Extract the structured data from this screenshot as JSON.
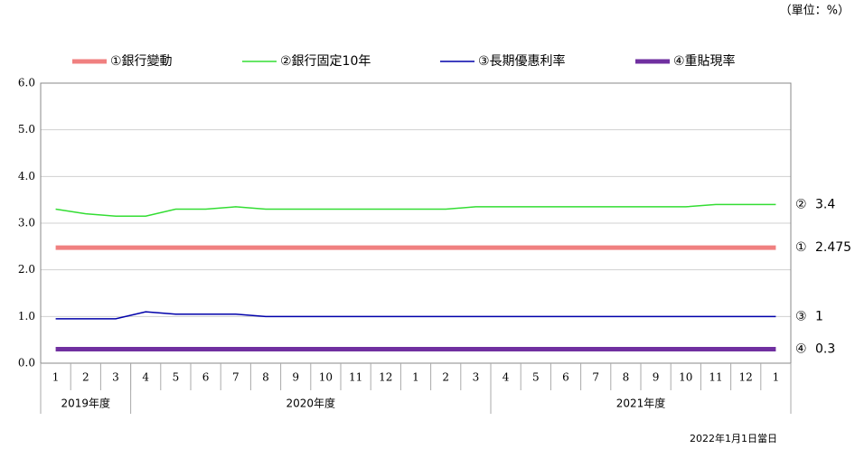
{
  "chart_data": {
    "type": "line",
    "unit_note": "（單位：%）",
    "date_note": "2022年1月1日當日",
    "categories": [
      "1",
      "2",
      "3",
      "4",
      "5",
      "6",
      "7",
      "8",
      "9",
      "10",
      "11",
      "12",
      "1",
      "2",
      "3",
      "4",
      "5",
      "6",
      "7",
      "8",
      "9",
      "10",
      "11",
      "12",
      "1"
    ],
    "groups": [
      {
        "label": "2019年度",
        "count": 3
      },
      {
        "label": "2020年度",
        "count": 12
      },
      {
        "label": "2021年度",
        "count": 10
      }
    ],
    "series": [
      {
        "name": "①銀行變動",
        "marker": "①",
        "color": "#f08080",
        "width": 5,
        "values": [
          2.475,
          2.475,
          2.475,
          2.475,
          2.475,
          2.475,
          2.475,
          2.475,
          2.475,
          2.475,
          2.475,
          2.475,
          2.475,
          2.475,
          2.475,
          2.475,
          2.475,
          2.475,
          2.475,
          2.475,
          2.475,
          2.475,
          2.475,
          2.475,
          2.475
        ]
      },
      {
        "name": "②銀行固定10年",
        "marker": "②",
        "color": "#33dd33",
        "width": 1.5,
        "values": [
          3.3,
          3.2,
          3.15,
          3.15,
          3.3,
          3.3,
          3.35,
          3.3,
          3.3,
          3.3,
          3.3,
          3.3,
          3.3,
          3.3,
          3.35,
          3.35,
          3.35,
          3.35,
          3.35,
          3.35,
          3.35,
          3.35,
          3.4,
          3.4,
          3.4
        ]
      },
      {
        "name": "③長期優惠利率",
        "marker": "③",
        "color": "#0000aa",
        "width": 1.5,
        "values": [
          0.95,
          0.95,
          0.95,
          1.1,
          1.05,
          1.05,
          1.05,
          1.0,
          1.0,
          1.0,
          1.0,
          1.0,
          1.0,
          1.0,
          1.0,
          1.0,
          1.0,
          1.0,
          1.0,
          1.0,
          1.0,
          1.0,
          1.0,
          1.0,
          1.0
        ]
      },
      {
        "name": "④重貼現率",
        "marker": "④",
        "color": "#7030a0",
        "width": 5,
        "values": [
          0.3,
          0.3,
          0.3,
          0.3,
          0.3,
          0.3,
          0.3,
          0.3,
          0.3,
          0.3,
          0.3,
          0.3,
          0.3,
          0.3,
          0.3,
          0.3,
          0.3,
          0.3,
          0.3,
          0.3,
          0.3,
          0.3,
          0.3,
          0.3,
          0.3
        ]
      }
    ],
    "ylim": [
      0,
      6
    ],
    "yticks": [
      {
        "value": 0,
        "label": "0.0"
      },
      {
        "value": 1,
        "label": "1.0"
      },
      {
        "value": 2,
        "label": "2.0"
      },
      {
        "value": 3,
        "label": "3.0"
      },
      {
        "value": 4,
        "label": "4.0"
      },
      {
        "value": 5,
        "label": "5.0"
      },
      {
        "value": 6,
        "label": "6.0"
      }
    ],
    "grid": true
  }
}
